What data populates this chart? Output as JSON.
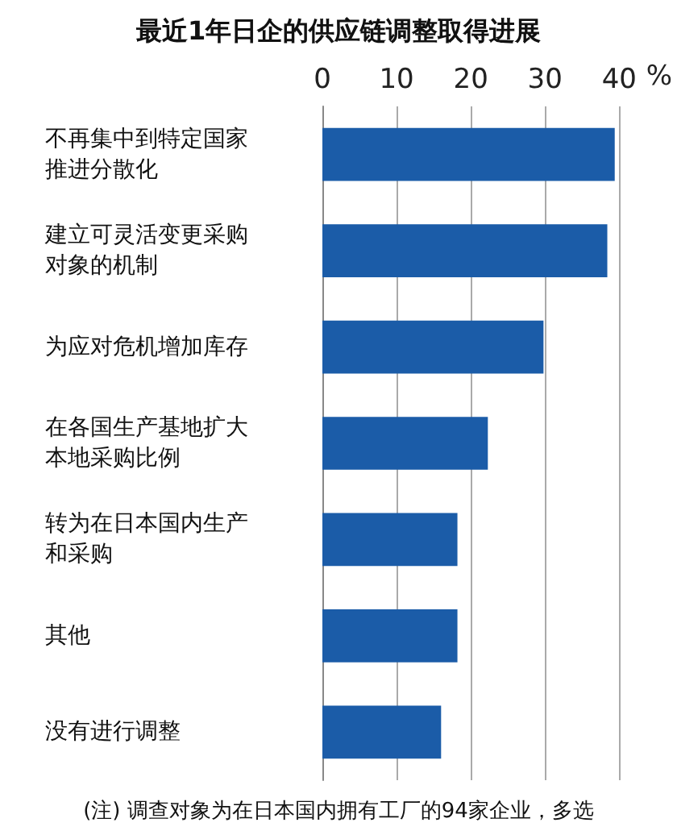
{
  "chart_data": {
    "type": "bar",
    "orientation": "horizontal",
    "title": "最近1年日企的供应链调整取得进展",
    "categories": [
      "不再集中到特定国家推进分散化",
      "建立可灵活变更采购对象的机制",
      "为应对危机增加库存",
      "在各国生产基地扩大本地采购比例",
      "转为在日本国内生产和采购",
      "其他",
      "没有进行调整"
    ],
    "values": [
      39.4,
      38.4,
      29.8,
      22.3,
      18.2,
      18.2,
      16.0
    ],
    "color": "#1b5ca8",
    "xlabel": "%",
    "xlim": [
      0,
      40
    ],
    "xticks": [
      0,
      10,
      20,
      30,
      40
    ],
    "grid": "x",
    "annotations": [
      "(注) 调查对象为在日本国内拥有工厂的94家企业，多选"
    ]
  }
}
